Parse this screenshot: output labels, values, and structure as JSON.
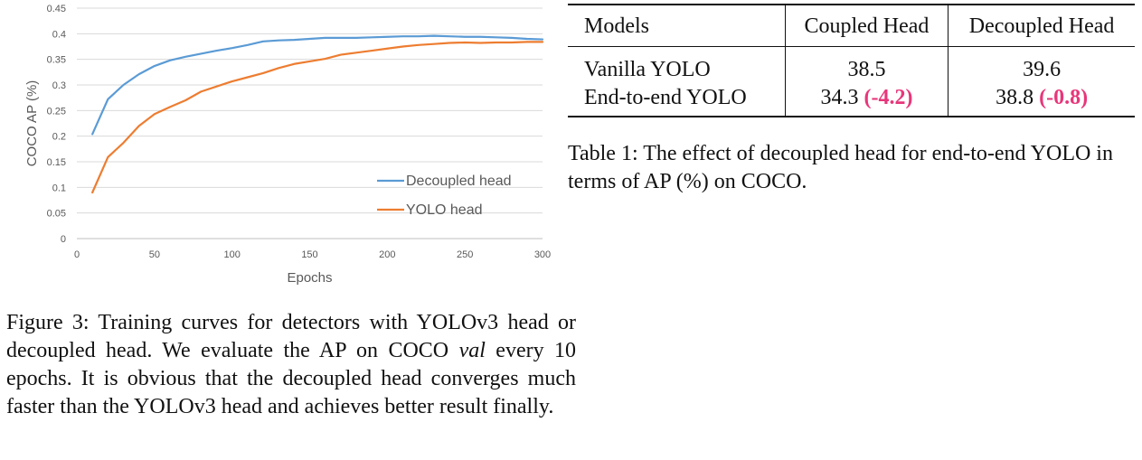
{
  "chart_data": {
    "type": "line",
    "title": "",
    "xlabel": "Epochs",
    "ylabel": "COCO AP (%)",
    "xlim": [
      0,
      300
    ],
    "ylim": [
      0,
      0.45
    ],
    "xticks": [
      0,
      50,
      100,
      150,
      200,
      250,
      300
    ],
    "yticks": [
      0,
      0.05,
      0.1,
      0.15,
      0.2,
      0.25,
      0.3,
      0.35,
      0.4,
      0.45
    ],
    "ytick_labels": [
      "0",
      "0.05",
      "0.1",
      "0.15",
      "0.2",
      "0.25",
      "0.3",
      "0.35",
      "0.4",
      "0.45"
    ],
    "grid": "horizontal",
    "legend": "bottom-right",
    "x": [
      10,
      20,
      30,
      40,
      50,
      60,
      70,
      80,
      90,
      100,
      110,
      120,
      130,
      140,
      150,
      160,
      170,
      180,
      190,
      200,
      210,
      220,
      230,
      240,
      250,
      260,
      270,
      280,
      290,
      300
    ],
    "series": [
      {
        "name": "Decoupled head",
        "color": "#5b9bd5",
        "values": [
          0.204,
          0.272,
          0.3,
          0.321,
          0.337,
          0.348,
          0.355,
          0.361,
          0.367,
          0.372,
          0.378,
          0.385,
          0.387,
          0.388,
          0.39,
          0.392,
          0.392,
          0.392,
          0.393,
          0.394,
          0.395,
          0.395,
          0.396,
          0.395,
          0.394,
          0.394,
          0.393,
          0.392,
          0.39,
          0.389
        ]
      },
      {
        "name": "YOLO head",
        "color": "#ed7d31",
        "values": [
          0.09,
          0.159,
          0.187,
          0.22,
          0.243,
          0.257,
          0.27,
          0.287,
          0.297,
          0.307,
          0.315,
          0.323,
          0.333,
          0.341,
          0.346,
          0.351,
          0.359,
          0.363,
          0.367,
          0.371,
          0.375,
          0.378,
          0.38,
          0.382,
          0.383,
          0.382,
          0.383,
          0.383,
          0.384,
          0.384
        ]
      }
    ]
  },
  "figure_caption": {
    "prefix": "Figure 3: Training curves for detectors with YOLOv3 head or decoupled head. We evaluate the AP on COCO ",
    "italic": "val",
    "suffix": " every 10 epochs. It is obvious that the decoupled head converges much faster than the YOLOv3 head and achieves better result finally."
  },
  "table": {
    "headers": [
      "Models",
      "Coupled Head",
      "Decoupled Head"
    ],
    "rows": [
      {
        "model": "Vanilla YOLO",
        "coupled": "38.5",
        "coupled_delta": "",
        "decoupled": "39.6",
        "decoupled_delta": ""
      },
      {
        "model": "End-to-end YOLO",
        "coupled": "34.3",
        "coupled_delta": "(-4.2)",
        "decoupled": "38.8",
        "decoupled_delta": "(-0.8)"
      }
    ],
    "delta_color": "#e8367a"
  },
  "table_caption": "Table 1: The effect of decoupled head for end-to-end YOLO in terms of AP (%) on COCO."
}
